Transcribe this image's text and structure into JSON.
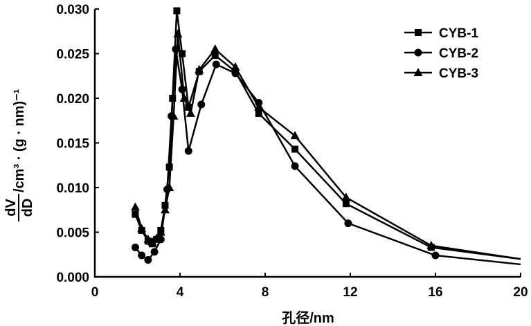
{
  "chart_data": {
    "type": "line",
    "xlabel": "孔径/nm",
    "ylabel_fraction_top": "dV",
    "ylabel_fraction_bottom": "dD",
    "ylabel_tail": "/cm³ · (g · nm)⁻¹",
    "xlim": [
      0,
      20
    ],
    "ylim": [
      0,
      0.03
    ],
    "x_ticks": [
      0,
      4,
      8,
      12,
      16,
      20
    ],
    "x_tick_labels": [
      "0",
      "4",
      "8",
      "12",
      "16",
      "20"
    ],
    "y_ticks": [
      0,
      0.005,
      0.01,
      0.015,
      0.02,
      0.025,
      0.03
    ],
    "y_tick_labels": [
      "0.000",
      "0.005",
      "0.010",
      "0.015",
      "0.020",
      "0.025",
      "0.030"
    ],
    "grid": false,
    "legend_position": "top-right",
    "series": [
      {
        "name": "CYB-1",
        "marker": "square",
        "x": [
          1.9,
          2.2,
          2.5,
          2.7,
          2.9,
          3.1,
          3.3,
          3.5,
          3.65,
          3.85,
          4.1,
          4.4,
          4.9,
          5.65,
          6.6,
          7.7,
          9.4,
          11.8,
          15.8,
          20
        ],
        "y": [
          0.007,
          0.0052,
          0.004,
          0.0037,
          0.0042,
          0.0052,
          0.008,
          0.0123,
          0.02,
          0.0298,
          0.025,
          0.019,
          0.023,
          0.0248,
          0.023,
          0.0183,
          0.0143,
          0.0082,
          0.0033,
          0.002
        ]
      },
      {
        "name": "CYB-2",
        "marker": "circle",
        "x": [
          1.9,
          2.2,
          2.5,
          2.8,
          3.1,
          3.4,
          3.6,
          3.8,
          4.1,
          4.4,
          5.0,
          5.7,
          6.6,
          7.7,
          9.4,
          11.9,
          16.0,
          20
        ],
        "y": [
          0.0033,
          0.0024,
          0.0019,
          0.0028,
          0.0042,
          0.0098,
          0.018,
          0.0255,
          0.021,
          0.0141,
          0.0193,
          0.0238,
          0.0228,
          0.0195,
          0.0124,
          0.006,
          0.0024,
          0.0014
        ]
      },
      {
        "name": "CYB-3",
        "marker": "triangle",
        "x": [
          1.9,
          2.2,
          2.5,
          2.7,
          2.9,
          3.1,
          3.3,
          3.5,
          3.7,
          3.9,
          4.2,
          4.5,
          4.9,
          5.65,
          6.6,
          7.7,
          9.4,
          11.8,
          15.8,
          20
        ],
        "y": [
          0.0078,
          0.0054,
          0.0042,
          0.0039,
          0.0043,
          0.005,
          0.0075,
          0.01,
          0.018,
          0.0272,
          0.02,
          0.0183,
          0.0232,
          0.0255,
          0.0235,
          0.019,
          0.0158,
          0.0089,
          0.0035,
          0.002
        ]
      }
    ]
  }
}
